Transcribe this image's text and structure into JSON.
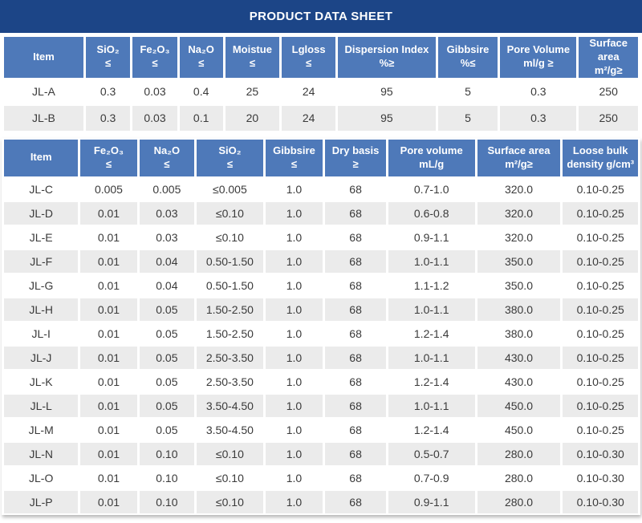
{
  "title": "PRODUCT DATA SHEET",
  "colors": {
    "title_bar": "#1c4587",
    "header_fill": "#4e79b9",
    "header_text": "#ffffff",
    "row_even": "#ffffff",
    "row_odd": "#ebebeb",
    "cell_text": "#3a3a3a"
  },
  "table1": {
    "columns": [
      {
        "line1": "Item",
        "line2": ""
      },
      {
        "line1": "SiO₂",
        "line2": "≤"
      },
      {
        "line1": "Fe₂O₃",
        "line2": "≤"
      },
      {
        "line1": "Na₂O",
        "line2": "≤"
      },
      {
        "line1": "Moistue",
        "line2": "≤"
      },
      {
        "line1": "Lgloss",
        "line2": "≤"
      },
      {
        "line1": "Dispersion Index",
        "line2": "%≥"
      },
      {
        "line1": "Gibbsire",
        "line2": "%≤"
      },
      {
        "line1": "Pore Volume",
        "line2": "ml/g ≥"
      },
      {
        "line1": "Surface area",
        "line2": "m²/g≥"
      }
    ],
    "rows": [
      [
        "JL-A",
        "0.3",
        "0.03",
        "0.4",
        "25",
        "24",
        "95",
        "5",
        "0.3",
        "250"
      ],
      [
        "JL-B",
        "0.3",
        "0.03",
        "0.1",
        "20",
        "24",
        "95",
        "5",
        "0.3",
        "250"
      ]
    ]
  },
  "table2": {
    "columns": [
      {
        "line1": "Item",
        "line2": ""
      },
      {
        "line1": "Fe₂O₃",
        "line2": "≤"
      },
      {
        "line1": "Na₂O",
        "line2": "≤"
      },
      {
        "line1": "SiO₂",
        "line2": "≤"
      },
      {
        "line1": "Gibbsire",
        "line2": "≤"
      },
      {
        "line1": "Dry basis",
        "line2": "≥"
      },
      {
        "line1": "Pore volume",
        "line2": "mL/g"
      },
      {
        "line1": "Surface area",
        "line2": "m²/g≥"
      },
      {
        "line1": "Loose bulk",
        "line2": "density g/cm³"
      }
    ],
    "rows": [
      [
        "JL-C",
        "0.005",
        "0.005",
        "≤0.005",
        "1.0",
        "68",
        "0.7-1.0",
        "320.0",
        "0.10-0.25"
      ],
      [
        "JL-D",
        "0.01",
        "0.03",
        "≤0.10",
        "1.0",
        "68",
        "0.6-0.8",
        "320.0",
        "0.10-0.25"
      ],
      [
        "JL-E",
        "0.01",
        "0.03",
        "≤0.10",
        "1.0",
        "68",
        "0.9-1.1",
        "320.0",
        "0.10-0.25"
      ],
      [
        "JL-F",
        "0.01",
        "0.04",
        "0.50-1.50",
        "1.0",
        "68",
        "1.0-1.1",
        "350.0",
        "0.10-0.25"
      ],
      [
        "JL-G",
        "0.01",
        "0.04",
        "0.50-1.50",
        "1.0",
        "68",
        "1.1-1.2",
        "350.0",
        "0.10-0.25"
      ],
      [
        "JL-H",
        "0.01",
        "0.05",
        "1.50-2.50",
        "1.0",
        "68",
        "1.0-1.1",
        "380.0",
        "0.10-0.25"
      ],
      [
        "JL-I",
        "0.01",
        "0.05",
        "1.50-2.50",
        "1.0",
        "68",
        "1.2-1.4",
        "380.0",
        "0.10-0.25"
      ],
      [
        "JL-J",
        "0.01",
        "0.05",
        "2.50-3.50",
        "1.0",
        "68",
        "1.0-1.1",
        "430.0",
        "0.10-0.25"
      ],
      [
        "JL-K",
        "0.01",
        "0.05",
        "2.50-3.50",
        "1.0",
        "68",
        "1.2-1.4",
        "430.0",
        "0.10-0.25"
      ],
      [
        "JL-L",
        "0.01",
        "0.05",
        "3.50-4.50",
        "1.0",
        "68",
        "1.0-1.1",
        "450.0",
        "0.10-0.25"
      ],
      [
        "JL-M",
        "0.01",
        "0.05",
        "3.50-4.50",
        "1.0",
        "68",
        "1.2-1.4",
        "450.0",
        "0.10-0.25"
      ],
      [
        "JL-N",
        "0.01",
        "0.10",
        "≤0.10",
        "1.0",
        "68",
        "0.5-0.7",
        "280.0",
        "0.10-0.30"
      ],
      [
        "JL-O",
        "0.01",
        "0.10",
        "≤0.10",
        "1.0",
        "68",
        "0.7-0.9",
        "280.0",
        "0.10-0.30"
      ],
      [
        "JL-P",
        "0.01",
        "0.10",
        "≤0.10",
        "1.0",
        "68",
        "0.9-1.1",
        "280.0",
        "0.10-0.30"
      ]
    ]
  }
}
